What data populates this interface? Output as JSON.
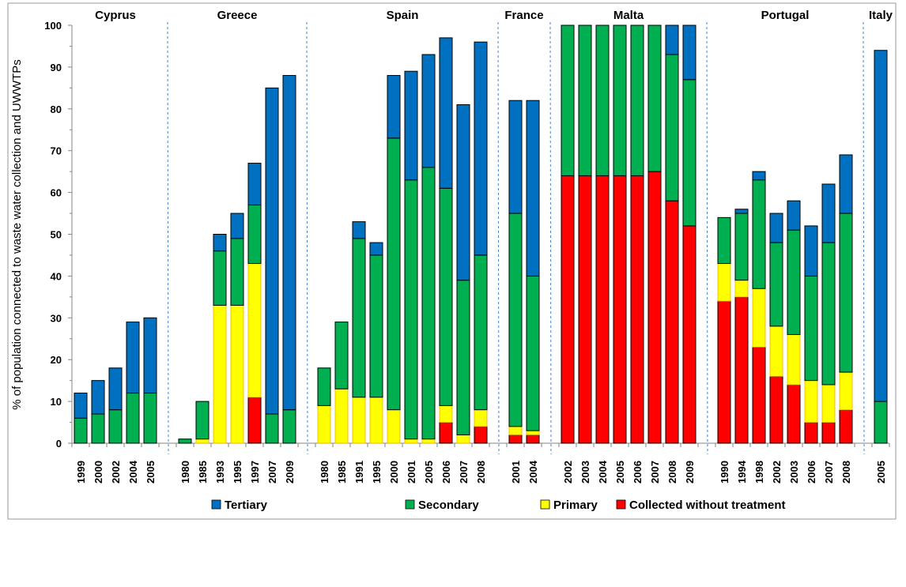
{
  "chart_data": {
    "type": "bar",
    "stacked": true,
    "ylabel": "% of population connected to waste water collection and UWWTPs",
    "ylim": [
      0,
      100
    ],
    "yticks": [
      0,
      10,
      20,
      30,
      40,
      50,
      60,
      70,
      80,
      90,
      100
    ],
    "grid": false,
    "legend_position": "bottom",
    "series_order": [
      "Collected without treatment",
      "Primary",
      "Secondary",
      "Tertiary"
    ],
    "legend": [
      {
        "name": "Tertiary",
        "color": "#0070C0"
      },
      {
        "name": "Secondary",
        "color": "#00B050"
      },
      {
        "name": "Primary",
        "color": "#FFFF00"
      },
      {
        "name": "Collected without treatment",
        "color": "#FF0000"
      }
    ],
    "groups": [
      {
        "country": "Cyprus",
        "years": [
          "1999",
          "2000",
          "2002",
          "2004",
          "2005"
        ],
        "untreated": [
          0,
          0,
          0,
          0,
          0
        ],
        "primary": [
          0,
          0,
          0,
          0,
          0
        ],
        "secondary": [
          6,
          7,
          8,
          12,
          12
        ],
        "tertiary": [
          6,
          8,
          10,
          17,
          18
        ]
      },
      {
        "country": "Greece",
        "years": [
          "1980",
          "1985",
          "1993",
          "1995",
          "1997",
          "2007",
          "2009"
        ],
        "untreated": [
          0,
          0,
          0,
          0,
          11,
          0,
          0
        ],
        "primary": [
          0,
          1,
          33,
          33,
          32,
          0,
          0
        ],
        "secondary": [
          1,
          9,
          13,
          16,
          14,
          7,
          8
        ],
        "tertiary": [
          0,
          0,
          4,
          6,
          10,
          78,
          80
        ]
      },
      {
        "country": "Spain",
        "years": [
          "1980",
          "1985",
          "1991",
          "1995",
          "2000",
          "2001",
          "2005",
          "2006",
          "2007",
          "2008"
        ],
        "untreated": [
          0,
          0,
          0,
          0,
          0,
          0,
          0,
          5,
          0,
          4
        ],
        "primary": [
          9,
          13,
          11,
          11,
          8,
          1,
          1,
          4,
          2,
          4
        ],
        "secondary": [
          9,
          16,
          38,
          34,
          65,
          62,
          65,
          52,
          37,
          37
        ],
        "tertiary": [
          0,
          0,
          4,
          3,
          15,
          26,
          27,
          36,
          42,
          51
        ]
      },
      {
        "country": "France",
        "years": [
          "2001",
          "2004"
        ],
        "untreated": [
          2,
          2
        ],
        "primary": [
          2,
          1
        ],
        "secondary": [
          51,
          37
        ],
        "tertiary": [
          27,
          42
        ]
      },
      {
        "country": "Malta",
        "years": [
          "2002",
          "2003",
          "2004",
          "2005",
          "2006",
          "2007",
          "2008",
          "2009"
        ],
        "untreated": [
          64,
          64,
          64,
          64,
          64,
          65,
          58,
          52
        ],
        "primary": [
          0,
          0,
          0,
          0,
          0,
          0,
          0,
          0
        ],
        "secondary": [
          36,
          36,
          36,
          36,
          36,
          35,
          35,
          35
        ],
        "tertiary": [
          0,
          0,
          0,
          0,
          0,
          0,
          7,
          13
        ]
      },
      {
        "country": "Portugal",
        "years": [
          "1990",
          "1994",
          "1998",
          "2002",
          "2003",
          "2006",
          "2007",
          "2008"
        ],
        "untreated": [
          34,
          35,
          23,
          16,
          14,
          5,
          5,
          8
        ],
        "primary": [
          9,
          4,
          14,
          12,
          12,
          10,
          9,
          9
        ],
        "secondary": [
          11,
          16,
          26,
          20,
          25,
          25,
          34,
          38
        ],
        "tertiary": [
          0,
          1,
          2,
          7,
          7,
          12,
          14,
          14
        ]
      },
      {
        "country": "Italy",
        "years": [
          "2005"
        ],
        "untreated": [
          0
        ],
        "primary": [
          0
        ],
        "secondary": [
          10
        ],
        "tertiary": [
          84
        ]
      }
    ]
  }
}
